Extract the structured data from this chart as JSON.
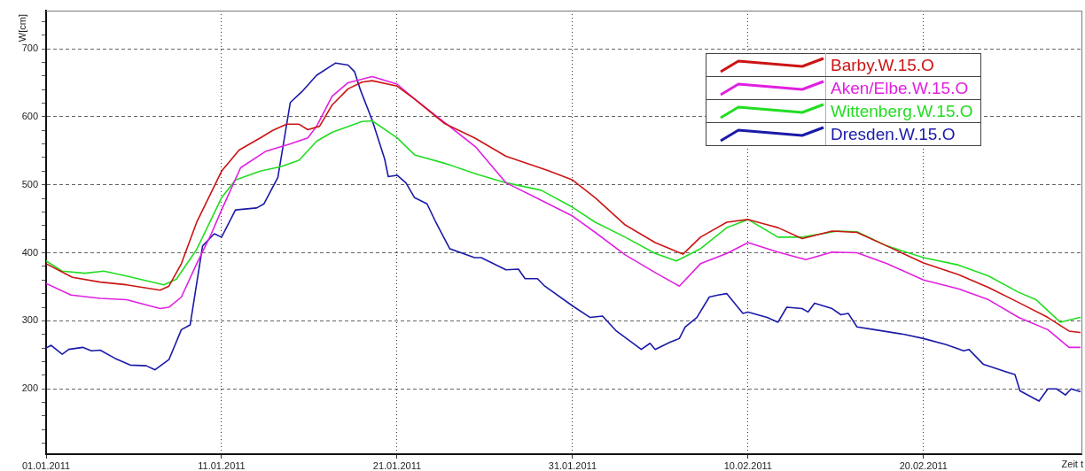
{
  "chart_data": {
    "type": "line",
    "xlabel": "Zeit t",
    "ylabel": "W[cm]",
    "xlim": [
      "2011-01-01",
      "2011-03-01"
    ],
    "xticks": [
      {
        "value": "2011-01-01",
        "label": "01.01.2011"
      },
      {
        "value": "2011-01-11",
        "label": "11.01.2011"
      },
      {
        "value": "2011-01-21",
        "label": "21.01.2011"
      },
      {
        "value": "2011-01-31",
        "label": "31.01.2011"
      },
      {
        "value": "2011-02-10",
        "label": "10.02.2011"
      },
      {
        "value": "2011-02-20",
        "label": "20.02.2011"
      }
    ],
    "ylim": [
      104,
      756
    ],
    "yticks": [
      {
        "value": 120,
        "label": null
      },
      {
        "value": 140,
        "label": null
      },
      {
        "value": 160,
        "label": null
      },
      {
        "value": 180,
        "label": null
      },
      200,
      {
        "value": 220,
        "label": null
      },
      {
        "value": 240,
        "label": null
      },
      {
        "value": 260,
        "label": null
      },
      {
        "value": 280,
        "label": null
      },
      300,
      {
        "value": 320,
        "label": null
      },
      {
        "value": 340,
        "label": null
      },
      {
        "value": 360,
        "label": null
      },
      {
        "value": 380,
        "label": null
      },
      400,
      {
        "value": 420,
        "label": null
      },
      {
        "value": 440,
        "label": null
      },
      {
        "value": 460,
        "label": null
      },
      {
        "value": 480,
        "label": null
      },
      500,
      {
        "value": 520,
        "label": null
      },
      {
        "value": 540,
        "label": null
      },
      {
        "value": 560,
        "label": null
      },
      {
        "value": 580,
        "label": null
      },
      600,
      {
        "value": 620,
        "label": null
      },
      {
        "value": 640,
        "label": null
      },
      {
        "value": 660,
        "label": null
      },
      {
        "value": 680,
        "label": null
      },
      700,
      {
        "value": 720,
        "label": null
      },
      {
        "value": 740,
        "label": null
      }
    ],
    "grid": true,
    "legend": "top right",
    "marker": "none",
    "line_style": "solid",
    "series": [
      {
        "name": "Barby.W.15.O",
        "color": "#cc1414",
        "x": [
          "2011-01-01T00:00",
          "2011-01-02T12:00",
          "2011-01-04T02:00",
          "2011-01-05T14:00",
          "2011-01-07T12:00",
          "2011-01-08T00:00",
          "2011-01-08T17:00",
          "2011-01-09T14:00",
          "2011-01-10T10:00",
          "2011-01-11T00:00",
          "2011-01-12T00:00",
          "2011-01-13T05:00",
          "2011-01-13T22:00",
          "2011-01-14T17:00",
          "2011-01-15T10:00",
          "2011-01-15T22:00",
          "2011-01-16T14:00",
          "2011-01-17T07:00",
          "2011-01-18T05:00",
          "2011-01-19T00:00",
          "2011-01-19T14:00",
          "2011-01-21T00:00",
          "2011-01-22T00:00",
          "2011-01-23T17:00",
          "2011-01-25T10:00",
          "2011-01-27T05:00",
          "2011-01-29T14:00",
          "2011-01-31T00:00",
          "2011-02-01T07:00",
          "2011-02-03T00:00",
          "2011-02-04T17:00",
          "2011-02-06T07:00",
          "2011-02-07T07:00",
          "2011-02-08T19:00",
          "2011-02-10T00:00",
          "2011-02-11T17:00",
          "2011-02-13T02:00",
          "2011-02-14T19:00",
          "2011-02-16T05:00",
          "2011-02-17T22:00",
          "2011-02-20T00:00",
          "2011-02-22T00:00",
          "2011-02-23T17:00",
          "2011-02-25T10:00",
          "2011-02-27T02:00",
          "2011-02-28T07:00",
          "2011-02-28T22:00"
        ],
        "values": [
          384,
          364,
          357,
          353,
          345,
          351,
          384,
          445,
          489,
          520,
          551,
          569,
          580,
          589,
          589,
          581,
          586,
          617,
          641,
          651,
          653,
          645,
          626,
          590,
          569,
          542,
          521,
          507,
          481,
          441,
          415,
          398,
          423,
          445,
          449,
          437,
          421,
          432,
          430,
          410,
          385,
          368,
          349,
          327,
          305,
          285,
          283
        ]
      },
      {
        "name": "Aken/Elbe.W.15.O",
        "color": "#e020e0",
        "x": [
          "2011-01-01T00:00",
          "2011-01-02T10:00",
          "2011-01-04T02:00",
          "2011-01-05T14:00",
          "2011-01-07T12:00",
          "2011-01-08T00:00",
          "2011-01-08T17:00",
          "2011-01-09T14:00",
          "2011-01-10T10:00",
          "2011-01-11T00:00",
          "2011-01-12T02:00",
          "2011-01-13T12:00",
          "2011-01-14T22:00",
          "2011-01-15T22:00",
          "2011-01-16T10:00",
          "2011-01-17T07:00",
          "2011-01-18T05:00",
          "2011-01-19T14:00",
          "2011-01-21T00:00",
          "2011-01-22T00:00",
          "2011-01-23T19:00",
          "2011-01-25T12:00",
          "2011-01-27T05:00",
          "2011-01-28T22:00",
          "2011-01-31T00:00",
          "2011-02-01T07:00",
          "2011-02-03T00:00",
          "2011-02-04T17:00",
          "2011-02-06T02:00",
          "2011-02-07T07:00",
          "2011-02-08T19:00",
          "2011-02-10T00:00",
          "2011-02-11T17:00",
          "2011-02-13T07:00",
          "2011-02-14T19:00",
          "2011-02-16T05:00",
          "2011-02-17T22:00",
          "2011-02-20T00:00",
          "2011-02-22T00:00",
          "2011-02-23T17:00",
          "2011-02-25T10:00",
          "2011-02-27T02:00",
          "2011-02-28T07:00",
          "2011-02-28T22:00"
        ],
        "values": [
          355,
          338,
          333,
          331,
          318,
          320,
          335,
          384,
          428,
          463,
          525,
          549,
          560,
          569,
          586,
          630,
          650,
          659,
          648,
          626,
          590,
          555,
          503,
          481,
          454,
          430,
          397,
          371,
          351,
          384,
          399,
          415,
          401,
          390,
          401,
          400,
          384,
          360,
          347,
          331,
          305,
          287,
          261,
          261
        ]
      },
      {
        "name": "Wittenberg.W.15.O",
        "color": "#22dd22",
        "x": [
          "2011-01-01T00:00",
          "2011-01-01T22:00",
          "2011-01-03T05:00",
          "2011-01-04T07:00",
          "2011-01-05T14:00",
          "2011-01-07T17:00",
          "2011-01-08T10:00",
          "2011-01-09T14:00",
          "2011-01-11T00:00",
          "2011-01-11T19:00",
          "2011-01-13T05:00",
          "2011-01-14T10:00",
          "2011-01-15T10:00",
          "2011-01-16T10:00",
          "2011-01-17T07:00",
          "2011-01-19T00:00",
          "2011-01-19T14:00",
          "2011-01-21T00:00",
          "2011-01-22T00:00",
          "2011-01-23T19:00",
          "2011-01-25T12:00",
          "2011-01-27T05:00",
          "2011-01-29T05:00",
          "2011-01-31T00:00",
          "2011-02-01T07:00",
          "2011-02-03T00:00",
          "2011-02-04T17:00",
          "2011-02-05T22:00",
          "2011-02-07T07:00",
          "2011-02-08T19:00",
          "2011-02-10T00:00",
          "2011-02-11T17:00",
          "2011-02-13T02:00",
          "2011-02-15T02:00",
          "2011-02-16T05:00",
          "2011-02-17T22:00",
          "2011-02-20T00:00",
          "2011-02-22T00:00",
          "2011-02-23T17:00",
          "2011-02-25T10:00",
          "2011-02-26T10:00",
          "2011-02-27T19:00",
          "2011-02-28T22:00"
        ],
        "values": [
          388,
          373,
          370,
          373,
          366,
          353,
          361,
          405,
          481,
          507,
          520,
          527,
          536,
          564,
          577,
          593,
          594,
          569,
          544,
          531,
          516,
          503,
          492,
          467,
          445,
          423,
          399,
          388,
          406,
          437,
          449,
          423,
          423,
          432,
          431,
          410,
          393,
          382,
          366,
          342,
          331,
          298,
          305
        ]
      },
      {
        "name": "Dresden.W.15.O",
        "color": "#1a1aa8",
        "x": [
          "2011-01-01T00:00",
          "2011-01-01T07:00",
          "2011-01-01T22:00",
          "2011-01-02T07:00",
          "2011-01-03T02:00",
          "2011-01-03T14:00",
          "2011-01-04T02:00",
          "2011-01-04T22:00",
          "2011-01-05T19:00",
          "2011-01-06T17:00",
          "2011-01-07T05:00",
          "2011-01-08T00:00",
          "2011-01-08T17:00",
          "2011-01-09T05:00",
          "2011-01-09T22:00",
          "2011-01-10T14:00",
          "2011-01-11T00:00",
          "2011-01-11T19:00",
          "2011-01-13T00:00",
          "2011-01-13T10:00",
          "2011-01-14T05:00",
          "2011-01-14T22:00",
          "2011-01-15T14:00",
          "2011-01-16T10:00",
          "2011-01-17T12:00",
          "2011-01-18T05:00",
          "2011-01-18T14:00",
          "2011-01-18T22:00",
          "2011-01-19T14:00",
          "2011-01-20T07:00",
          "2011-01-20T12:00",
          "2011-01-21T00:00",
          "2011-01-21T12:00",
          "2011-01-22T00:00",
          "2011-01-22T17:00",
          "2011-01-23T05:00",
          "2011-01-24T00:00",
          "2011-01-25T10:00",
          "2011-01-25T19:00",
          "2011-01-27T05:00",
          "2011-01-27T22:00",
          "2011-01-28T07:00",
          "2011-01-29T00:00",
          "2011-01-29T10:00",
          "2011-01-31T00:00",
          "2011-02-01T00:00",
          "2011-02-01T17:00",
          "2011-02-02T12:00",
          "2011-02-03T22:00",
          "2011-02-04T10:00",
          "2011-02-04T17:00",
          "2011-02-05T14:00",
          "2011-02-06T02:00",
          "2011-02-06T10:00",
          "2011-02-07T02:00",
          "2011-02-07T19:00",
          "2011-02-08T07:00",
          "2011-02-08T19:00",
          "2011-02-09T17:00",
          "2011-02-10T00:00",
          "2011-02-11T02:00",
          "2011-02-11T17:00",
          "2011-02-12T05:00",
          "2011-02-13T02:00",
          "2011-02-13T10:00",
          "2011-02-13T19:00",
          "2011-02-14T19:00",
          "2011-02-15T07:00",
          "2011-02-15T17:00",
          "2011-02-16T05:00",
          "2011-02-17T05:00",
          "2011-02-18T22:00",
          "2011-02-20T00:00",
          "2011-02-21T07:00",
          "2011-02-22T07:00",
          "2011-02-22T14:00",
          "2011-02-23T10:00",
          "2011-02-24T17:00",
          "2011-02-25T05:00",
          "2011-02-25T12:00",
          "2011-02-26T14:00",
          "2011-02-27T02:00",
          "2011-02-27T14:00",
          "2011-02-28T02:00",
          "2011-02-28T10:00",
          "2011-02-28T22:00"
        ],
        "values": [
          260,
          264,
          251,
          258,
          261,
          256,
          257,
          245,
          235,
          234,
          228,
          243,
          287,
          294,
          410,
          428,
          423,
          463,
          466,
          472,
          511,
          621,
          637,
          661,
          679,
          676,
          666,
          639,
          595,
          538,
          512,
          514,
          503,
          481,
          472,
          445,
          406,
          393,
          393,
          375,
          376,
          362,
          362,
          351,
          322,
          305,
          307,
          285,
          258,
          267,
          258,
          269,
          274,
          291,
          305,
          335,
          338,
          340,
          311,
          313,
          305,
          298,
          320,
          318,
          313,
          326,
          318,
          309,
          311,
          291,
          287,
          280,
          274,
          265,
          256,
          258,
          236,
          225,
          221,
          197,
          182,
          200,
          200,
          191,
          200,
          196
        ]
      }
    ]
  }
}
